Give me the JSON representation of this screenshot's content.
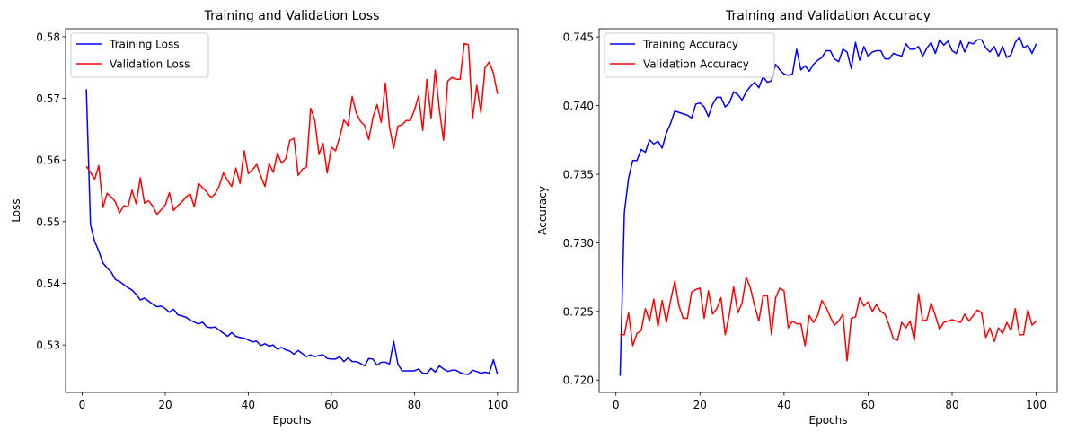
{
  "chart_data": [
    {
      "type": "line",
      "title": "Training and Validation Loss",
      "xlabel": "Epochs",
      "ylabel": "Loss",
      "xlim": [
        -4,
        105
      ],
      "ylim": [
        0.5223,
        0.5813
      ],
      "xticks": [
        0,
        20,
        40,
        60,
        80,
        100
      ],
      "yticks": [
        0.53,
        0.54,
        0.55,
        0.56,
        0.57,
        0.58
      ],
      "tick_labels_x": [
        "0",
        "20",
        "40",
        "60",
        "80",
        "100"
      ],
      "tick_labels_y": [
        "0.53",
        "0.54",
        "0.55",
        "0.56",
        "0.57",
        "0.58"
      ],
      "grid": false,
      "legend_placement": "top-left",
      "x": [
        1,
        2,
        3,
        4,
        5,
        6,
        7,
        8,
        9,
        10,
        11,
        12,
        13,
        14,
        15,
        16,
        17,
        18,
        19,
        20,
        21,
        22,
        23,
        24,
        25,
        26,
        27,
        28,
        29,
        30,
        31,
        32,
        33,
        34,
        35,
        36,
        37,
        38,
        39,
        40,
        41,
        42,
        43,
        44,
        45,
        46,
        47,
        48,
        49,
        50,
        51,
        52,
        53,
        54,
        55,
        56,
        57,
        58,
        59,
        60,
        61,
        62,
        63,
        64,
        65,
        66,
        67,
        68,
        69,
        70,
        71,
        72,
        73,
        74,
        75,
        76,
        77,
        78,
        79,
        80,
        81,
        82,
        83,
        84,
        85,
        86,
        87,
        88,
        89,
        90,
        91,
        92,
        93,
        94,
        95,
        96,
        97,
        98,
        99,
        100
      ],
      "series": [
        {
          "name": "Training Loss",
          "color": "#0000ff",
          "values": [
            0.5715,
            0.5495,
            0.5468,
            0.5452,
            0.5433,
            0.5425,
            0.5418,
            0.5406,
            0.5403,
            0.5398,
            0.5393,
            0.5389,
            0.5382,
            0.5373,
            0.5376,
            0.5371,
            0.5366,
            0.5362,
            0.5363,
            0.5359,
            0.5353,
            0.5358,
            0.5349,
            0.5347,
            0.5345,
            0.534,
            0.5337,
            0.5334,
            0.5337,
            0.5329,
            0.5328,
            0.5329,
            0.5324,
            0.5319,
            0.5314,
            0.532,
            0.5314,
            0.5312,
            0.5311,
            0.5308,
            0.5305,
            0.5306,
            0.5299,
            0.5302,
            0.5298,
            0.53,
            0.5293,
            0.5296,
            0.5292,
            0.529,
            0.5285,
            0.5291,
            0.5286,
            0.5281,
            0.5284,
            0.5281,
            0.5283,
            0.5284,
            0.5278,
            0.5277,
            0.5277,
            0.5281,
            0.5273,
            0.5279,
            0.5273,
            0.5273,
            0.527,
            0.5266,
            0.5278,
            0.5277,
            0.5267,
            0.5272,
            0.5272,
            0.5269,
            0.5306,
            0.5269,
            0.5258,
            0.5258,
            0.5258,
            0.5258,
            0.5261,
            0.5254,
            0.5254,
            0.5262,
            0.5256,
            0.5266,
            0.5261,
            0.5257,
            0.5259,
            0.5259,
            0.5255,
            0.5253,
            0.5252,
            0.5259,
            0.5257,
            0.5254,
            0.5256,
            0.5254,
            0.5276,
            0.5252
          ]
        },
        {
          "name": "Validation Loss",
          "color": "#ff0000",
          "values": [
            0.559,
            0.558,
            0.5569,
            0.5591,
            0.5523,
            0.5546,
            0.554,
            0.5532,
            0.5514,
            0.5526,
            0.5524,
            0.5551,
            0.5529,
            0.5571,
            0.553,
            0.5534,
            0.5525,
            0.5512,
            0.5519,
            0.5527,
            0.5547,
            0.5518,
            0.5526,
            0.5532,
            0.554,
            0.5545,
            0.5524,
            0.5562,
            0.5555,
            0.5548,
            0.5539,
            0.5545,
            0.5558,
            0.5579,
            0.5567,
            0.5557,
            0.5587,
            0.5562,
            0.5615,
            0.5578,
            0.5584,
            0.5593,
            0.5574,
            0.5557,
            0.5594,
            0.558,
            0.5611,
            0.5595,
            0.5602,
            0.5632,
            0.5635,
            0.5575,
            0.5585,
            0.5589,
            0.5684,
            0.5665,
            0.5609,
            0.5627,
            0.5579,
            0.5621,
            0.5615,
            0.5637,
            0.5665,
            0.5656,
            0.5703,
            0.5676,
            0.5663,
            0.5656,
            0.5633,
            0.5669,
            0.569,
            0.5661,
            0.5725,
            0.5653,
            0.5619,
            0.5655,
            0.5657,
            0.5664,
            0.5664,
            0.5681,
            0.5704,
            0.5648,
            0.5731,
            0.5668,
            0.5746,
            0.5682,
            0.5632,
            0.5728,
            0.5734,
            0.5731,
            0.5731,
            0.5789,
            0.5787,
            0.5668,
            0.5721,
            0.5677,
            0.575,
            0.5759,
            0.5741,
            0.5707
          ]
        }
      ]
    },
    {
      "type": "line",
      "title": "Training and Validation Accuracy",
      "xlabel": "Epochs",
      "ylabel": "Accuracy",
      "xlim": [
        -4,
        105
      ],
      "ylim": [
        0.7191,
        0.7456
      ],
      "xticks": [
        0,
        20,
        40,
        60,
        80,
        100
      ],
      "yticks": [
        0.72,
        0.725,
        0.73,
        0.735,
        0.74,
        0.745
      ],
      "tick_labels_x": [
        "0",
        "20",
        "40",
        "60",
        "80",
        "100"
      ],
      "tick_labels_y": [
        "0.720",
        "0.725",
        "0.730",
        "0.735",
        "0.740",
        "0.745"
      ],
      "grid": false,
      "legend_placement": "top-left",
      "x": [
        1,
        2,
        3,
        4,
        5,
        6,
        7,
        8,
        9,
        10,
        11,
        12,
        13,
        14,
        15,
        16,
        17,
        18,
        19,
        20,
        21,
        22,
        23,
        24,
        25,
        26,
        27,
        28,
        29,
        30,
        31,
        32,
        33,
        34,
        35,
        36,
        37,
        38,
        39,
        40,
        41,
        42,
        43,
        44,
        45,
        46,
        47,
        48,
        49,
        50,
        51,
        52,
        53,
        54,
        55,
        56,
        57,
        58,
        59,
        60,
        61,
        62,
        63,
        64,
        65,
        66,
        67,
        68,
        69,
        70,
        71,
        72,
        73,
        74,
        75,
        76,
        77,
        78,
        79,
        80,
        81,
        82,
        83,
        84,
        85,
        86,
        87,
        88,
        89,
        90,
        91,
        92,
        93,
        94,
        95,
        96,
        97,
        98,
        99,
        100
      ],
      "series": [
        {
          "name": "Training Accuracy",
          "color": "#0000ff",
          "values": [
            0.7203,
            0.7322,
            0.7347,
            0.736,
            0.736,
            0.7368,
            0.7366,
            0.7375,
            0.7372,
            0.7374,
            0.7369,
            0.738,
            0.7387,
            0.7396,
            0.7395,
            0.7394,
            0.7393,
            0.7391,
            0.7401,
            0.7402,
            0.7399,
            0.7392,
            0.7401,
            0.7406,
            0.7406,
            0.7399,
            0.7402,
            0.741,
            0.7408,
            0.7404,
            0.741,
            0.7414,
            0.7417,
            0.7413,
            0.7421,
            0.7417,
            0.7418,
            0.743,
            0.7426,
            0.7423,
            0.7422,
            0.7423,
            0.7441,
            0.7426,
            0.7429,
            0.7425,
            0.743,
            0.7433,
            0.7435,
            0.744,
            0.744,
            0.7434,
            0.7432,
            0.7441,
            0.7439,
            0.7427,
            0.7446,
            0.7433,
            0.7443,
            0.7436,
            0.7439,
            0.744,
            0.744,
            0.7434,
            0.7434,
            0.7438,
            0.7437,
            0.7436,
            0.7445,
            0.7441,
            0.7441,
            0.7443,
            0.7436,
            0.7442,
            0.7446,
            0.7438,
            0.7448,
            0.7444,
            0.7447,
            0.744,
            0.7438,
            0.7447,
            0.7439,
            0.7446,
            0.7445,
            0.7448,
            0.7448,
            0.7442,
            0.7439,
            0.7443,
            0.7436,
            0.7443,
            0.7435,
            0.7437,
            0.7446,
            0.745,
            0.7442,
            0.7444,
            0.7438,
            0.7445
          ]
        },
        {
          "name": "Validation Accuracy",
          "color": "#ff0000",
          "values": [
            0.7233,
            0.7233,
            0.7249,
            0.7225,
            0.7234,
            0.7236,
            0.7252,
            0.7243,
            0.7259,
            0.7239,
            0.7258,
            0.7242,
            0.7258,
            0.7272,
            0.7254,
            0.7245,
            0.7245,
            0.7264,
            0.7266,
            0.7267,
            0.7245,
            0.7265,
            0.7248,
            0.7252,
            0.726,
            0.7233,
            0.7248,
            0.7268,
            0.7249,
            0.7256,
            0.7275,
            0.7267,
            0.7254,
            0.7243,
            0.7261,
            0.7262,
            0.7233,
            0.726,
            0.7267,
            0.7265,
            0.7238,
            0.7243,
            0.7241,
            0.7241,
            0.7225,
            0.7247,
            0.7242,
            0.7247,
            0.7258,
            0.7253,
            0.7246,
            0.724,
            0.7243,
            0.7248,
            0.7214,
            0.7245,
            0.7246,
            0.726,
            0.7254,
            0.7257,
            0.725,
            0.7255,
            0.725,
            0.7248,
            0.724,
            0.723,
            0.7229,
            0.7242,
            0.7238,
            0.7243,
            0.7229,
            0.7263,
            0.7243,
            0.7244,
            0.7256,
            0.7247,
            0.7237,
            0.7242,
            0.7243,
            0.7244,
            0.7243,
            0.7242,
            0.7248,
            0.7243,
            0.7247,
            0.7251,
            0.7249,
            0.7231,
            0.7238,
            0.7228,
            0.7238,
            0.7234,
            0.7242,
            0.7236,
            0.7252,
            0.7233,
            0.7233,
            0.7251,
            0.724,
            0.7243
          ]
        }
      ]
    }
  ]
}
